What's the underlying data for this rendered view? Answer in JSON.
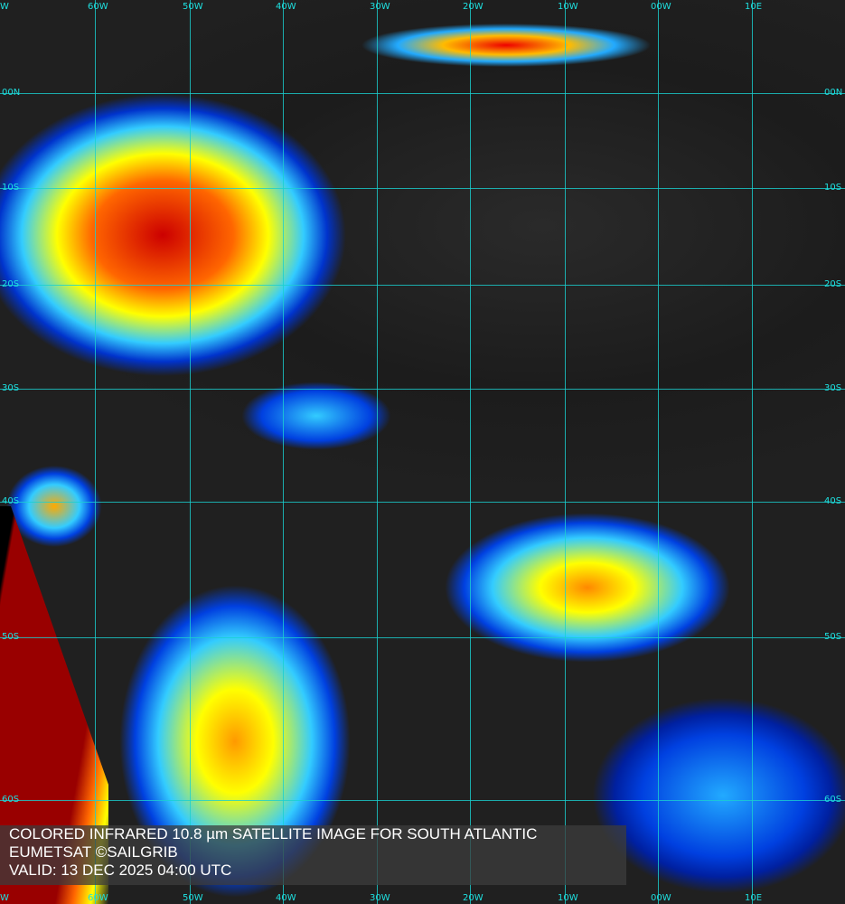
{
  "longitude_labels": [
    "W",
    "60W",
    "50W",
    "40W",
    "30W",
    "20W",
    "10W",
    "00W",
    "10E"
  ],
  "latitude_labels": [
    "00N",
    "10S",
    "20S",
    "30S",
    "40S",
    "50S",
    "60S"
  ],
  "caption": {
    "line1": "COLORED INFRARED 10.8 µm SATELLITE IMAGE FOR SOUTH ATLANTIC",
    "line2": "EUMETSAT ©SAILGRIB",
    "line3": "VALID:  13 DEC 2025 04:00 UTC"
  },
  "colors": {
    "grid": "#1ad0d0",
    "cold_tops": "#cc0000",
    "cloud_blue": "#0040e0"
  }
}
